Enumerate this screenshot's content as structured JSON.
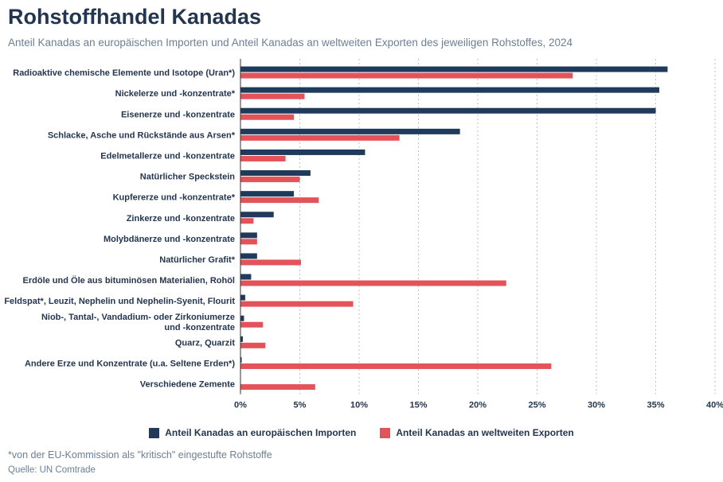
{
  "header": {
    "title": "Rohstoffhandel Kanadas",
    "subtitle": "Anteil Kanadas an europäischen Importen und Anteil Kanadas an weltweiten Exporten des jeweiligen Rohstoffes, 2024"
  },
  "colors": {
    "import": "#1f3a5a",
    "export": "#e5535a"
  },
  "chart_data": {
    "type": "bar",
    "orientation": "horizontal",
    "categories": [
      "Radioaktive chemische Elemente und Isotope (Uran*)",
      "Nickelerze und -konzentrate*",
      "Eisenerze und -konzentrate",
      "Schlacke, Asche und Rückstände aus Arsen*",
      "Edelmetallerze und -konzentrate",
      "Natürlicher Speckstein",
      "Kupfererze und -konzentrate*",
      "Zinkerze und -konzentrate",
      "Molybdänerze und -konzentrate",
      "Natürlicher Grafit*",
      "Erdöle und Öle aus bituminösen Materialien, Rohöl",
      "Feldspat*, Leuzit, Nephelin und Nephelin-Syenit, Flourit",
      "Niob-, Tantal-, Vandadium- oder Zirkoniumerze\nund -konzentrate",
      "Quarz, Quarzit",
      "Andere Erze und Konzentrate (u.a. Seltene Erden*)",
      "Verschiedene Zemente"
    ],
    "series": [
      {
        "name": "Anteil Kanadas an europäischen Importen",
        "values": [
          36.0,
          35.3,
          35.0,
          18.5,
          10.5,
          5.9,
          4.5,
          2.8,
          1.4,
          1.4,
          0.9,
          0.4,
          0.3,
          0.2,
          0.1,
          0.0
        ]
      },
      {
        "name": "Anteil Kanadas an weltweiten Exporten",
        "values": [
          28.0,
          5.4,
          4.5,
          13.4,
          3.8,
          5.0,
          6.6,
          1.1,
          1.4,
          5.1,
          22.4,
          9.5,
          1.9,
          2.1,
          26.2,
          6.3
        ]
      }
    ],
    "xlim": [
      0,
      40
    ],
    "xticks": [
      "0%",
      "5%",
      "10%",
      "15%",
      "20%",
      "25%",
      "30%",
      "35%",
      "40%"
    ],
    "grid": true,
    "legend": "bottom"
  },
  "footer": {
    "footnote": "*von der EU-Kommission als \"kritisch\" eingestufte Rohstoffe",
    "source": "Quelle: UN Comtrade"
  }
}
